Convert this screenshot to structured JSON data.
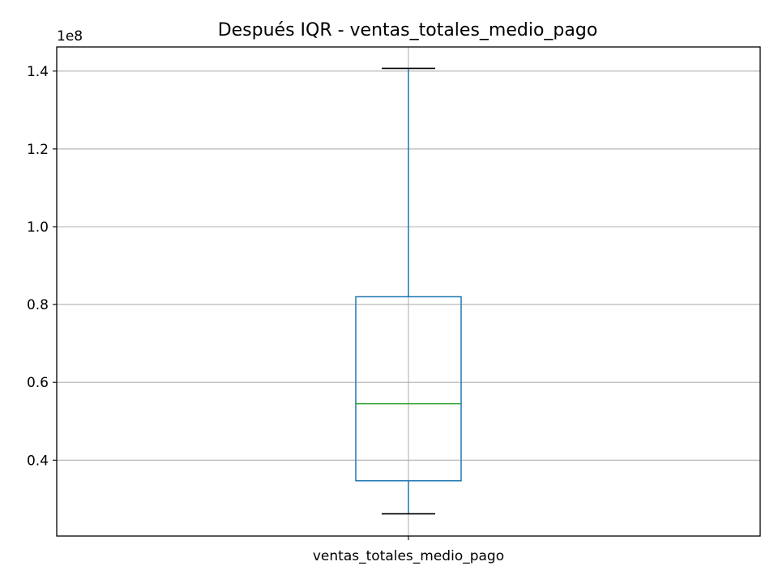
{
  "chart_data": {
    "type": "box",
    "title": "Después IQR - ventas_totales_medio_pago",
    "xlabel": "",
    "ylabel": "",
    "y_offset_label": "1e8",
    "y_scale_factor": 100000000,
    "ylim": [
      0.205,
      1.462
    ],
    "yticks": [
      0.4,
      0.6,
      0.8,
      1.0,
      1.2,
      1.4
    ],
    "ytick_labels": [
      "0.4",
      "0.6",
      "0.8",
      "1.0",
      "1.2",
      "1.4"
    ],
    "grid": true,
    "categories": [
      "ventas_totales_medio_pago"
    ],
    "boxes": [
      {
        "label": "ventas_totales_medio_pago",
        "whisker_low": 0.262,
        "q1": 0.347,
        "median": 0.545,
        "q3": 0.82,
        "whisker_high": 1.407
      }
    ],
    "colors": {
      "box": "#1f77b4",
      "median": "#2ca02c",
      "cap": "#000000",
      "grid": "#b0b0b0"
    }
  }
}
